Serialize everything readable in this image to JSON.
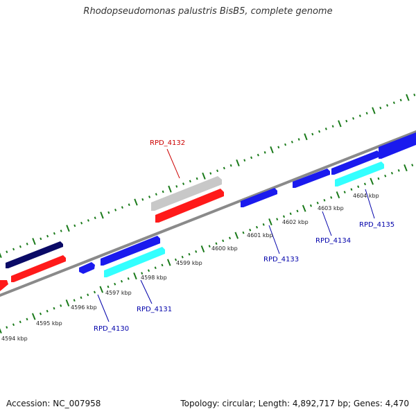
{
  "title": "Rhodopseudomonas palustris BisB5, complete genome",
  "footer": {
    "accession": "Accession: NC_007958",
    "summary": "Topology: circular; Length: 4,892,717 bp; Genes: 4,470"
  },
  "colors": {
    "backbone": "#8a8a8a",
    "tick": "#1a7a1a",
    "label_red": "#cc0000",
    "label_blue": "#0000aa",
    "gene_red": "#ff1a1a",
    "gene_blue": "#1a1aee",
    "gene_navy": "#0a0a66",
    "gene_cyan": "#33ffff",
    "gene_gray": "#c8c8c8"
  },
  "kbp_labels": [
    "4594 kbp",
    "4595 kbp",
    "4596 kbp",
    "4597 kbp",
    "4598 kbp",
    "4599 kbp",
    "4600 kbp",
    "4601 kbp",
    "4602 kbp",
    "4603 kbp",
    "4604 kbp"
  ],
  "gene_labels": [
    "RPD_4132",
    "RPD_4130",
    "RPD_4131",
    "RPD_4133",
    "RPD_4134",
    "RPD_4135"
  ]
}
